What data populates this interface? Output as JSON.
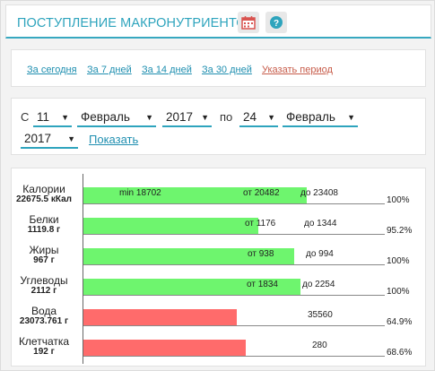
{
  "header": {
    "title": "ПОСТУПЛЕНИЕ МАКРОНУТРИЕНТОВ",
    "calendar_icon": "calendar-icon",
    "help_icon": "help-icon"
  },
  "periods": {
    "today": "За сегодня",
    "days7": "За 7 дней",
    "days14": "За 14 дней",
    "days30": "За 30 дней",
    "custom": "Указать период"
  },
  "date_range": {
    "from_label": "С",
    "from_day": "11",
    "from_month": "Февраль",
    "from_year": "2017",
    "to_label": "по",
    "to_day": "24",
    "to_month": "Февраль",
    "to_year": "2017",
    "show_label": "Показать"
  },
  "colors": {
    "accent": "#2ea4bd",
    "ok_bar": "#6ef56e",
    "bad_bar": "#ff6b6b",
    "custom_link": "#c75c4a"
  },
  "chart_data": {
    "type": "bar",
    "rows": [
      {
        "name": "Калории",
        "value": "22675.5 кКал",
        "min": "min 18702",
        "from": "от 20482",
        "to": "до 23408",
        "percent": "100%",
        "fill": 0.74,
        "status": "ok"
      },
      {
        "name": "Белки",
        "value": "1119.8 г",
        "from": "от 1176",
        "to": "до 1344",
        "percent": "95.2%",
        "fill": 0.58,
        "status": "ok"
      },
      {
        "name": "Жиры",
        "value": "967 г",
        "from": "от 938",
        "to": "до 994",
        "percent": "100%",
        "fill": 0.7,
        "status": "ok"
      },
      {
        "name": "Углеводы",
        "value": "2112 г",
        "from": "от 1834",
        "to": "до 2254",
        "percent": "100%",
        "fill": 0.72,
        "status": "ok"
      },
      {
        "name": "Вода",
        "value": "23073.761 г",
        "target": "35560",
        "percent": "64.9%",
        "fill": 0.51,
        "status": "bad"
      },
      {
        "name": "Клетчатка",
        "value": "192 г",
        "target": "280",
        "percent": "68.6%",
        "fill": 0.54,
        "status": "bad"
      }
    ]
  }
}
